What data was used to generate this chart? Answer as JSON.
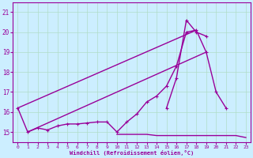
{
  "xlabel": "Windchill (Refroidissement éolien,°C)",
  "background_color": "#cceeff",
  "grid_color": "#b0ddc8",
  "line_color": "#990099",
  "x": [
    0,
    1,
    2,
    3,
    4,
    5,
    6,
    7,
    8,
    9,
    10,
    11,
    12,
    13,
    14,
    15,
    16,
    17,
    18,
    19,
    20,
    21,
    22,
    23
  ],
  "line_main": [
    16.2,
    15.0,
    15.2,
    15.1,
    15.3,
    15.4,
    15.4,
    15.45,
    15.5,
    15.5,
    15.0,
    15.5,
    15.9,
    16.5,
    16.8,
    17.3,
    18.3,
    20.0,
    20.1,
    19.0,
    17.0,
    16.2,
    null,
    null
  ],
  "line_peak": [
    null,
    null,
    null,
    null,
    null,
    null,
    null,
    null,
    null,
    null,
    null,
    null,
    null,
    null,
    null,
    16.2,
    17.7,
    20.6,
    20.0,
    19.8,
    null,
    null,
    null,
    null
  ],
  "line_diag1": [
    16.2,
    15.0,
    null,
    null,
    null,
    null,
    null,
    null,
    null,
    null,
    null,
    null,
    null,
    null,
    null,
    null,
    null,
    null,
    20.1,
    null,
    null,
    null,
    null,
    null
  ],
  "line_diag2": [
    null,
    15.0,
    null,
    null,
    null,
    null,
    null,
    null,
    null,
    null,
    null,
    null,
    null,
    null,
    null,
    null,
    null,
    null,
    null,
    19.0,
    null,
    null,
    null,
    null
  ],
  "line_flat": [
    null,
    null,
    null,
    null,
    null,
    null,
    null,
    null,
    null,
    null,
    14.88,
    14.88,
    14.88,
    14.88,
    14.82,
    14.82,
    14.82,
    14.82,
    14.82,
    14.82,
    14.82,
    14.82,
    14.82,
    14.72
  ],
  "ylim": [
    14.5,
    21.5
  ],
  "xlim": [
    -0.5,
    23.5
  ],
  "yticks": [
    15,
    16,
    17,
    18,
    19,
    20,
    21
  ],
  "xticks": [
    0,
    1,
    2,
    3,
    4,
    5,
    6,
    7,
    8,
    9,
    10,
    11,
    12,
    13,
    14,
    15,
    16,
    17,
    18,
    19,
    20,
    21,
    22,
    23
  ]
}
